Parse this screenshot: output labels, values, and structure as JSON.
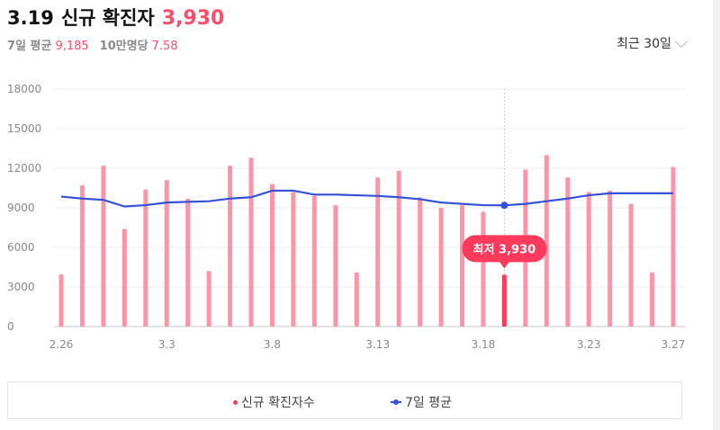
{
  "header": {
    "date": "3.19",
    "label": "신규 확진자",
    "value": "3,930",
    "avg_label": "7일 평균",
    "avg_value": "9,185",
    "per100k_label": "10만명당",
    "per100k_value": "7.58",
    "period": "최근 30일"
  },
  "legend": {
    "cases": "신규 확진자수",
    "avg": "7일 평균"
  },
  "colors": {
    "bar": "#ff94a6",
    "bar_highlight": "#ff3a5c",
    "avg_line": "#3352d9",
    "accent": "#ff4d6a"
  },
  "chart_data": {
    "type": "bar",
    "x": [
      "2.26",
      "2.27",
      "2.28",
      "3.1",
      "3.2",
      "3.3",
      "3.4",
      "3.5",
      "3.6",
      "3.7",
      "3.8",
      "3.9",
      "3.10",
      "3.11",
      "3.12",
      "3.13",
      "3.14",
      "3.15",
      "3.16",
      "3.17",
      "3.18",
      "3.19",
      "3.20",
      "3.21",
      "3.22",
      "3.23",
      "3.24",
      "3.25",
      "3.26",
      "3.27"
    ],
    "x_tick_labels": [
      "2.26",
      "3.3",
      "3.8",
      "3.13",
      "3.18",
      "3.23",
      "3.27"
    ],
    "series": [
      {
        "name": "신규 확진자수",
        "type": "bar",
        "values": [
          3950,
          10700,
          12200,
          7400,
          10400,
          11100,
          9700,
          4200,
          12200,
          12800,
          10800,
          10200,
          9900,
          9200,
          4100,
          11300,
          11800,
          9800,
          9000,
          9200,
          8700,
          3930,
          11900,
          13000,
          11300,
          10200,
          10300,
          9300,
          4100,
          12100
        ]
      },
      {
        "name": "7일 평균",
        "type": "line",
        "values": [
          9850,
          9700,
          9600,
          9100,
          9200,
          9400,
          9450,
          9500,
          9700,
          9800,
          10300,
          10300,
          10000,
          10000,
          9950,
          9900,
          9800,
          9650,
          9400,
          9300,
          9200,
          9185,
          9300,
          9500,
          9700,
          9950,
          10100,
          10100,
          10100,
          10100
        ]
      }
    ],
    "highlight": {
      "x": "3.19",
      "label": "최저 3,930"
    },
    "ylim": [
      0,
      18000
    ],
    "yticks": [
      0,
      3000,
      6000,
      9000,
      12000,
      15000,
      18000
    ],
    "grid": true
  }
}
